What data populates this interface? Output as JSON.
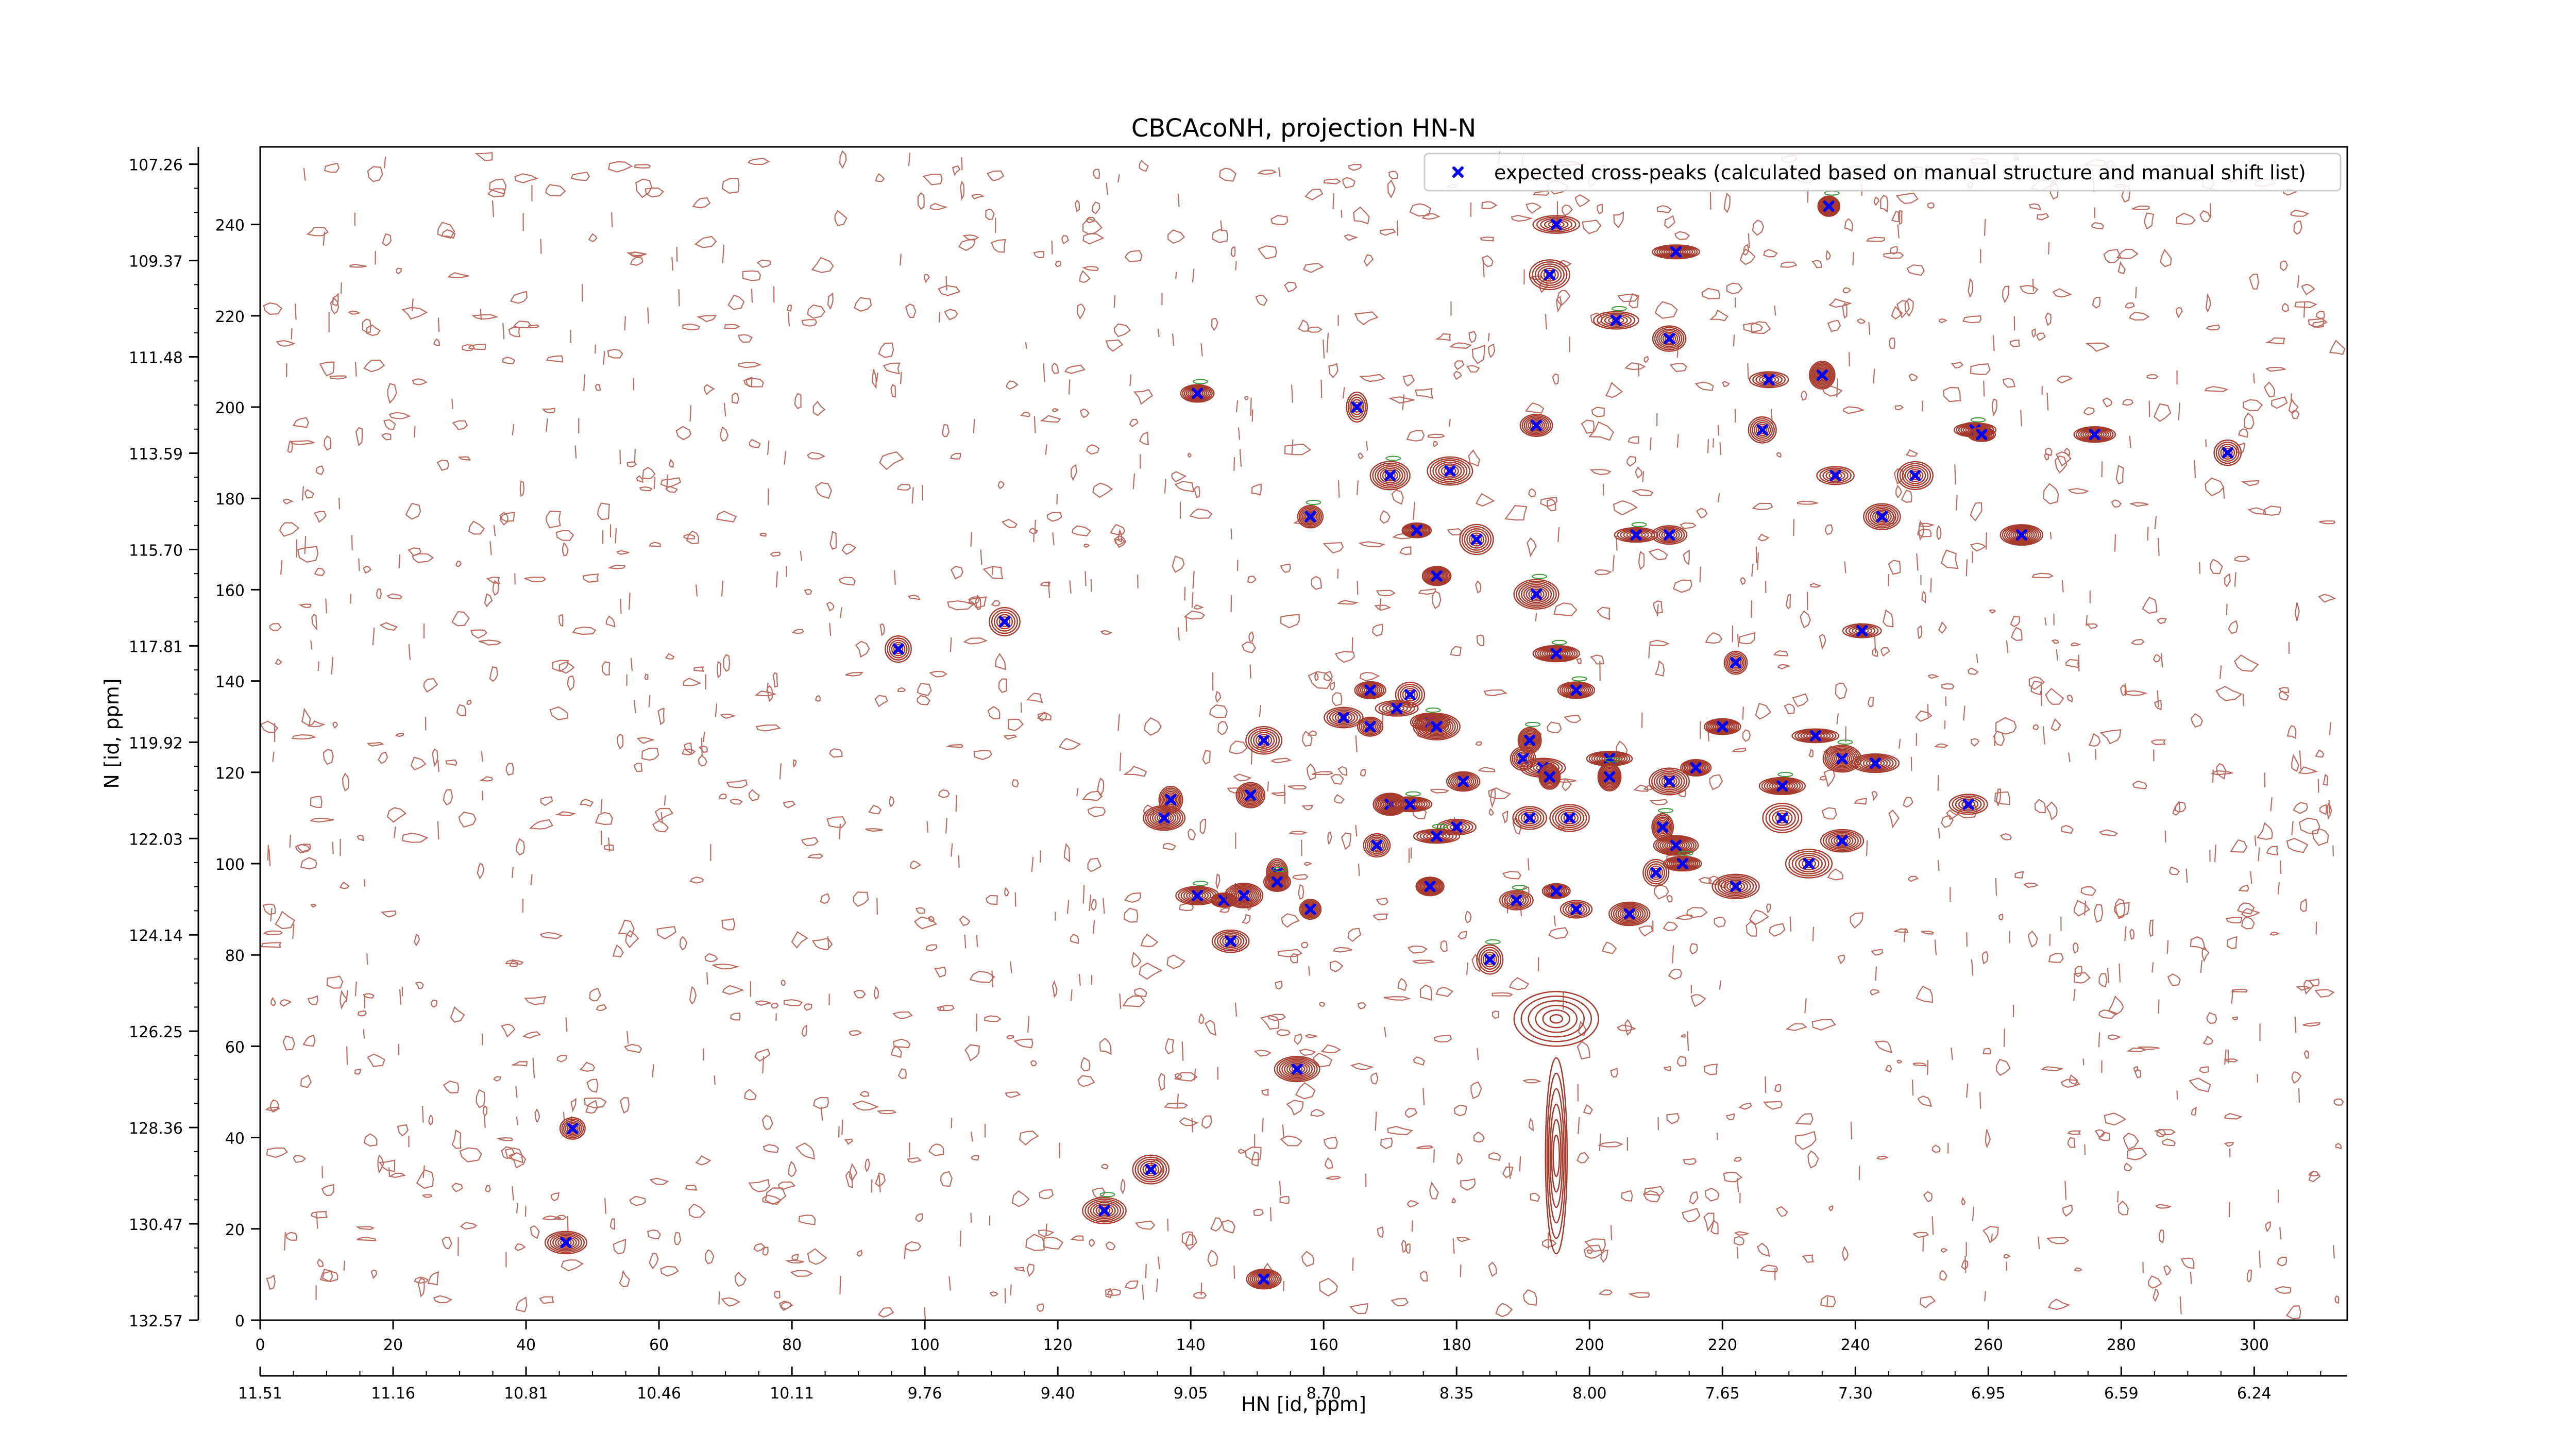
{
  "chart_data": {
    "type": "scatter",
    "title": "CBCAcoNH, projection HN-N",
    "xlabel": "HN [id, ppm]",
    "ylabel": "N [id, ppm]",
    "xlim": [
      0,
      314
    ],
    "ylim": [
      0,
      257
    ],
    "grid": false,
    "legend_position": "top-right",
    "x_index_ticks": [
      "0",
      "20",
      "40",
      "60",
      "80",
      "100",
      "120",
      "140",
      "160",
      "180",
      "200",
      "220",
      "240",
      "260",
      "280",
      "300"
    ],
    "x_ppm_ticks": [
      "11.51",
      "11.16",
      "10.81",
      "10.46",
      "10.11",
      "9.76",
      "9.40",
      "9.05",
      "8.70",
      "8.35",
      "8.00",
      "7.65",
      "7.30",
      "6.95",
      "6.59",
      "6.24"
    ],
    "y_index_ticks": [
      "0",
      "20",
      "40",
      "60",
      "80",
      "100",
      "120",
      "140",
      "160",
      "180",
      "200",
      "220",
      "240"
    ],
    "y_ppm_ticks": [
      "132.57",
      "130.47",
      "128.36",
      "126.25",
      "124.14",
      "122.03",
      "119.92",
      "117.81",
      "115.70",
      "113.59",
      "111.48",
      "109.37",
      "107.26"
    ],
    "series": [
      {
        "name": "expected cross-peaks (calculated based on manual structure and manual shift list)",
        "color": "#0000ff",
        "marker": "x",
        "points": [
          [
            236,
            244
          ],
          [
            195,
            240
          ],
          [
            213,
            234
          ],
          [
            194,
            229
          ],
          [
            204,
            219
          ],
          [
            212,
            215
          ],
          [
            227,
            206
          ],
          [
            235,
            207
          ],
          [
            141,
            203
          ],
          [
            165,
            200
          ],
          [
            192,
            196
          ],
          [
            226,
            195
          ],
          [
            258,
            195
          ],
          [
            259,
            194
          ],
          [
            276,
            194
          ],
          [
            296,
            190
          ],
          [
            170,
            185
          ],
          [
            179,
            186
          ],
          [
            237,
            185
          ],
          [
            249,
            185
          ],
          [
            158,
            176
          ],
          [
            174,
            173
          ],
          [
            244,
            176
          ],
          [
            183,
            171
          ],
          [
            207,
            172
          ],
          [
            212,
            172
          ],
          [
            265,
            172
          ],
          [
            177,
            163
          ],
          [
            192,
            159
          ],
          [
            112,
            153
          ],
          [
            96,
            147
          ],
          [
            241,
            151
          ],
          [
            195,
            146
          ],
          [
            222,
            144
          ],
          [
            167,
            138
          ],
          [
            173,
            137
          ],
          [
            198,
            138
          ],
          [
            171,
            134
          ],
          [
            163,
            132
          ],
          [
            167,
            130
          ],
          [
            176,
            131
          ],
          [
            177,
            130
          ],
          [
            220,
            130
          ],
          [
            151,
            127
          ],
          [
            191,
            127
          ],
          [
            234,
            128
          ],
          [
            190,
            123
          ],
          [
            203,
            123
          ],
          [
            238,
            123
          ],
          [
            243,
            122
          ],
          [
            193,
            121
          ],
          [
            194,
            119
          ],
          [
            203,
            119
          ],
          [
            216,
            121
          ],
          [
            181,
            118
          ],
          [
            212,
            118
          ],
          [
            229,
            117
          ],
          [
            149,
            115
          ],
          [
            137,
            114
          ],
          [
            170,
            113
          ],
          [
            173,
            113
          ],
          [
            136,
            110
          ],
          [
            191,
            110
          ],
          [
            197,
            110
          ],
          [
            211,
            108
          ],
          [
            229,
            110
          ],
          [
            257,
            113
          ],
          [
            180,
            108
          ],
          [
            177,
            106
          ],
          [
            168,
            104
          ],
          [
            213,
            104
          ],
          [
            238,
            105
          ],
          [
            214,
            100
          ],
          [
            233,
            100
          ],
          [
            210,
            98
          ],
          [
            153,
            98
          ],
          [
            153,
            96
          ],
          [
            176,
            95
          ],
          [
            195,
            94
          ],
          [
            222,
            95
          ],
          [
            141,
            93
          ],
          [
            145,
            92
          ],
          [
            148,
            93
          ],
          [
            158,
            90
          ],
          [
            189,
            92
          ],
          [
            198,
            90
          ],
          [
            206,
            89
          ],
          [
            146,
            83
          ],
          [
            185,
            79
          ],
          [
            156,
            55
          ],
          [
            47,
            42
          ],
          [
            134,
            33
          ],
          [
            127,
            24
          ],
          [
            46,
            17
          ],
          [
            151,
            9
          ]
        ]
      }
    ]
  }
}
